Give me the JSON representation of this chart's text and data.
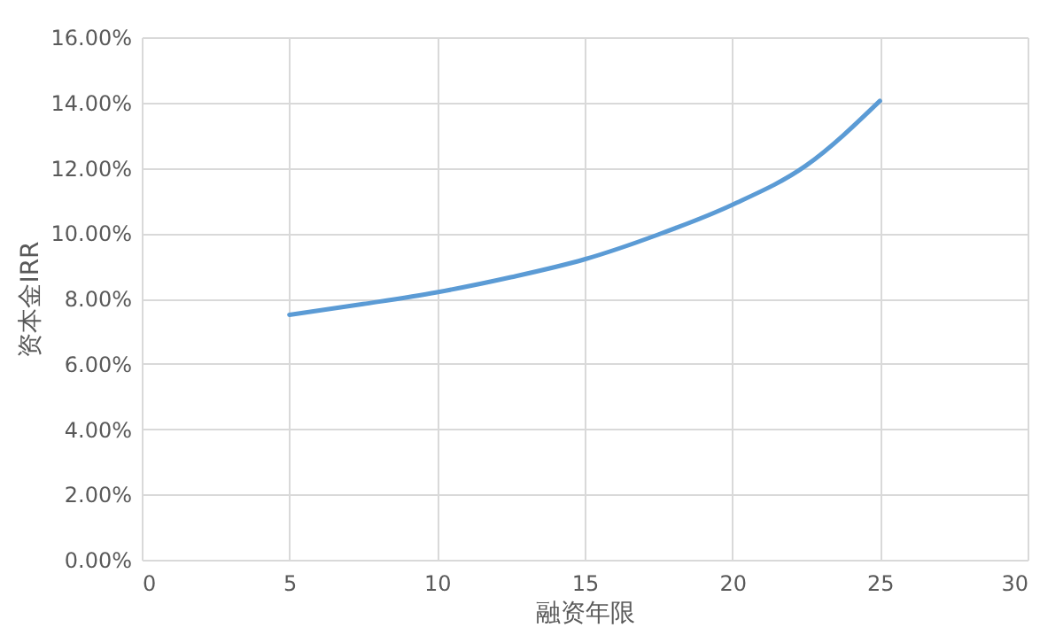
{
  "chart_data": {
    "type": "line",
    "xlabel": "融资年限",
    "ylabel": "资本金IRR",
    "x": [
      5,
      7.5,
      10,
      12.5,
      15,
      17.5,
      20,
      22.5,
      25
    ],
    "series": [
      {
        "color": "#5b9bd5",
        "values": [
          7.5,
          7.83,
          8.19,
          8.65,
          9.2,
          9.96,
          10.87,
          12.07,
          14.05
        ]
      }
    ],
    "xlim": [
      0,
      30
    ],
    "xticks": [
      0,
      5,
      10,
      15,
      20,
      25,
      30
    ],
    "ylim": [
      0,
      16
    ],
    "yticks": [
      {
        "value": 0,
        "label": "0.00%"
      },
      {
        "value": 2,
        "label": "2.00%"
      },
      {
        "value": 4,
        "label": "4.00%"
      },
      {
        "value": 6,
        "label": "6.00%"
      },
      {
        "value": 8,
        "label": "8.00%"
      },
      {
        "value": 10,
        "label": "10.00%"
      },
      {
        "value": 12,
        "label": "12.00%"
      },
      {
        "value": 14,
        "label": "14.00%"
      },
      {
        "value": 16,
        "label": "16.00%"
      }
    ],
    "grid": true,
    "marker": "none",
    "line_style": "solid"
  }
}
